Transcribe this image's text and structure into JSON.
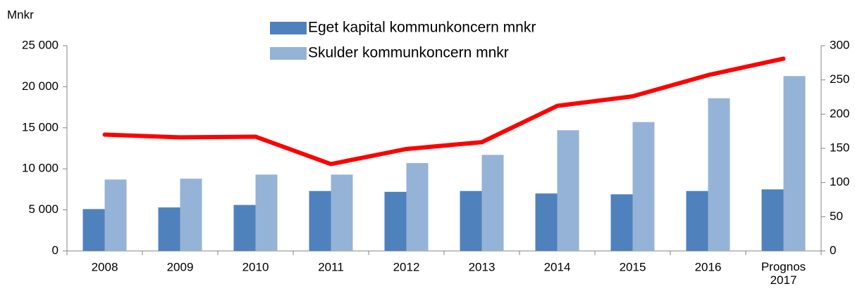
{
  "chart_data": {
    "type": "bar",
    "y_label": "Mnkr",
    "categories": [
      "2008",
      "2009",
      "2010",
      "2011",
      "2012",
      "2013",
      "2014",
      "2015",
      "2016",
      "Prognos 2017"
    ],
    "series": [
      {
        "name": "Eget kapital kommunkoncern mnkr",
        "color": "#4f81bd",
        "values": [
          5100,
          5300,
          5600,
          7300,
          7200,
          7300,
          7000,
          6900,
          7300,
          7500
        ]
      },
      {
        "name": "Skulder kommunkoncern mnkr",
        "color": "#95b3d7",
        "values": [
          8700,
          8800,
          9300,
          9300,
          10700,
          11700,
          14700,
          15700,
          18600,
          21300
        ]
      },
      {
        "type": "line",
        "axis": "y2",
        "color": "#ff0000",
        "values": [
          170,
          166,
          167,
          127,
          149,
          159,
          212,
          226,
          257,
          281
        ]
      }
    ],
    "ylim": [
      0,
      25000
    ],
    "yticks": [
      {
        "value": 0,
        "label": "0"
      },
      {
        "value": 5000,
        "label": "5 000"
      },
      {
        "value": 10000,
        "label": "10 000"
      },
      {
        "value": 15000,
        "label": "15 000"
      },
      {
        "value": 20000,
        "label": "20 000"
      },
      {
        "value": 25000,
        "label": "25 000"
      }
    ],
    "y2lim": [
      0,
      300
    ],
    "y2ticks": [
      0,
      50,
      100,
      150,
      200,
      250,
      300
    ],
    "legend": "top"
  }
}
